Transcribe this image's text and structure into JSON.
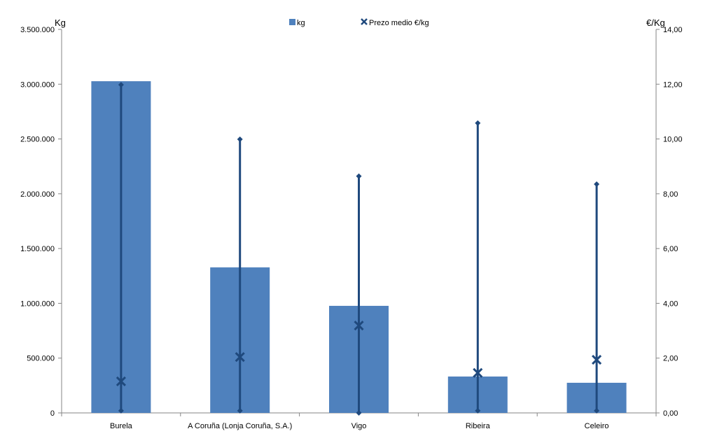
{
  "chart_data": {
    "type": "bar",
    "categories": [
      "Burela",
      "A Coruña (Lonja Coruña, S.A.)",
      "Vigo",
      "Ribeira",
      "Celeiro"
    ],
    "ylabel_left": "Kg",
    "ylabel_right": "€/Kg",
    "ylim_left": [
      0,
      3500000
    ],
    "ylim_right": [
      0,
      14
    ],
    "yticks_left": [
      "0",
      "500.000",
      "1.000.000",
      "1.500.000",
      "2.000.000",
      "2.500.000",
      "3.000.000",
      "3.500.000"
    ],
    "yticks_right": [
      "0,00",
      "2,00",
      "4,00",
      "6,00",
      "8,00",
      "10,00",
      "12,00",
      "14,00"
    ],
    "legend": [
      "kg",
      "Prezo medio €/kg"
    ],
    "legend_position": "top",
    "series": [
      {
        "name": "kg",
        "type": "bar",
        "color": "#4F81BD",
        "values": [
          3027000,
          1328000,
          977000,
          332000,
          275000
        ]
      },
      {
        "name": "Prezo medio €/kg",
        "type": "high-low-avg",
        "axis": "right",
        "color": "#1F497D",
        "avg": [
          1.15,
          2.04,
          3.19,
          1.46,
          1.94
        ],
        "max": [
          11.98,
          9.99,
          8.64,
          10.58,
          8.35
        ],
        "min": [
          0.08,
          0.08,
          0.0,
          0.08,
          0.08
        ]
      }
    ]
  }
}
